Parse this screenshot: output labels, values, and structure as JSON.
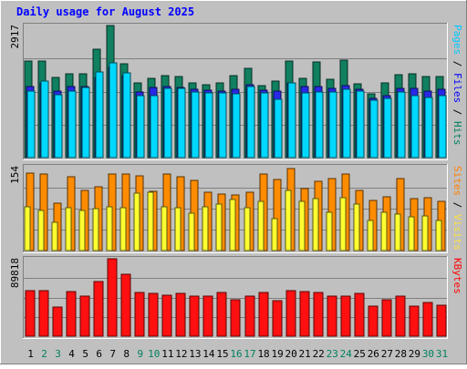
{
  "chart_data": {
    "type": "bar",
    "title": "Daily usage for August 2025",
    "categories": [
      "1",
      "2",
      "3",
      "4",
      "5",
      "6",
      "7",
      "8",
      "9",
      "10",
      "11",
      "12",
      "13",
      "14",
      "15",
      "16",
      "17",
      "18",
      "19",
      "20",
      "21",
      "22",
      "23",
      "24",
      "25",
      "26",
      "27",
      "28",
      "29",
      "30",
      "31"
    ],
    "weekend_days": [
      "2",
      "3",
      "9",
      "10",
      "16",
      "17",
      "23",
      "24",
      "30",
      "31"
    ],
    "panels": [
      {
        "id": "hits",
        "ymax_label": "2917",
        "ylim": [
          0,
          2917
        ],
        "grid": true,
        "right_labels": [
          {
            "text": "Pages",
            "color": "#00c8ff"
          },
          {
            "text": " / ",
            "color": "#000000"
          },
          {
            "text": "Files",
            "color": "#0000ff"
          },
          {
            "text": " / ",
            "color": "#000000"
          },
          {
            "text": "Hits",
            "color": "#008060"
          }
        ],
        "series": [
          {
            "name": "Hits",
            "color": "#108060",
            "values": [
              2140,
              2140,
              1780,
              1860,
              1850,
              2400,
              2917,
              2080,
              1640,
              1750,
              1820,
              1800,
              1640,
              1610,
              1640,
              1810,
              1970,
              1590,
              1690,
              2130,
              1750,
              2120,
              1740,
              2150,
              1620,
              1400,
              1640,
              1840,
              1850,
              1790,
              1790
            ]
          },
          {
            "name": "Files",
            "color": "#2828e8",
            "values": [
              1570,
              1640,
              1470,
              1560,
              1560,
              1780,
              2000,
              1810,
              1450,
              1550,
              1560,
              1540,
              1510,
              1490,
              1470,
              1500,
              1600,
              1480,
              1470,
              1650,
              1560,
              1570,
              1520,
              1590,
              1500,
              1300,
              1360,
              1520,
              1530,
              1460,
              1500
            ]
          },
          {
            "name": "Pages",
            "color": "#00d8ff",
            "values": [
              1460,
              1680,
              1380,
              1470,
              1550,
              1900,
              2100,
              1880,
              1360,
              1370,
              1520,
              1520,
              1440,
              1420,
              1420,
              1400,
              1570,
              1430,
              1290,
              1640,
              1430,
              1440,
              1450,
              1500,
              1460,
              1260,
              1300,
              1440,
              1360,
              1330,
              1360
            ]
          }
        ]
      },
      {
        "id": "visits",
        "ymax_label": "154",
        "ylim": [
          0,
          154
        ],
        "grid": true,
        "right_labels": [
          {
            "text": "Sites",
            "color": "#ff8000"
          },
          {
            "text": " / ",
            "color": "#000000"
          },
          {
            "text": "Visits",
            "color": "#ffe040"
          }
        ],
        "series": [
          {
            "name": "Visits",
            "color": "#ff8c00",
            "values": [
              143,
              140,
              87,
              136,
              110,
              117,
              140,
              140,
              137,
              109,
              140,
              136,
              129,
              107,
              104,
              102,
              107,
              140,
              131,
              151,
              113,
              128,
              133,
              140,
              110,
              92,
              98,
              133,
              96,
              97,
              91
            ]
          },
          {
            "name": "Sites",
            "color": "#ffff30",
            "values": [
              80,
              74,
              52,
              79,
              74,
              77,
              80,
              79,
              106,
              107,
              80,
              79,
              69,
              80,
              86,
              93,
              79,
              91,
              59,
              111,
              90,
              95,
              71,
              97,
              86,
              56,
              70,
              67,
              62,
              64,
              56
            ]
          }
        ]
      },
      {
        "id": "kbytes",
        "ymax_label": "89818",
        "ylim": [
          0,
          89818
        ],
        "grid": true,
        "right_labels": [
          {
            "text": "KBytes",
            "color": "#ff0000"
          }
        ],
        "series": [
          {
            "name": "KBytes",
            "color": "#ff1010",
            "values": [
              53300,
              53300,
              34100,
              52000,
              46700,
              62900,
              89818,
              72300,
              50200,
              49300,
              48000,
              49300,
              46700,
              46000,
              50200,
              42400,
              46700,
              50200,
              41600,
              53300,
              51700,
              50200,
              46700,
              46700,
              49300,
              34900,
              42400,
              46000,
              34900,
              39000,
              35700
            ]
          }
        ]
      }
    ]
  }
}
